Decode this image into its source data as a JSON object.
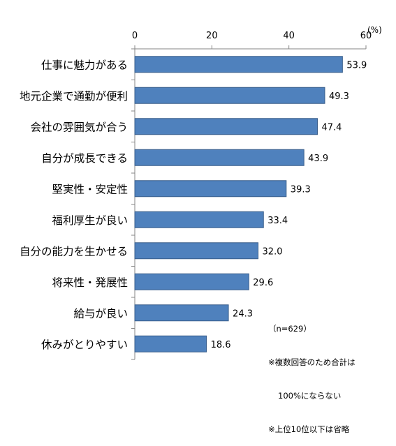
{
  "chart_data": {
    "type": "bar",
    "orientation": "horizontal",
    "categories": [
      "仕事に魅力がある",
      "地元企業で通勤が便利",
      "会社の雰囲気が合う",
      "自分が成長できる",
      "堅実性・安定性",
      "福利厚生が良い",
      "自分の能力を生かせる",
      "将来性・発展性",
      "給与が良い",
      "休みがとりやすい"
    ],
    "values": [
      53.9,
      49.3,
      47.4,
      43.9,
      39.3,
      33.4,
      32.0,
      29.6,
      24.3,
      18.6
    ],
    "value_labels": [
      "53.9",
      "49.3",
      "47.4",
      "43.9",
      "39.3",
      "33.4",
      "32.0",
      "29.6",
      "24.3",
      "18.6"
    ],
    "xlim": [
      0,
      60
    ],
    "xticks": [
      0,
      20,
      40,
      60
    ],
    "xtick_labels": [
      "0",
      "20",
      "40",
      "60"
    ],
    "unit": "(%)",
    "axis_position": "top",
    "grid": false,
    "bar_color": "#4f81bd",
    "bar_edge_color": "#385d8a",
    "notes": {
      "sample": "（n=629）",
      "line1": "※複数回答のため合計は",
      "line2": "100%にならない",
      "line3": "※上位10位以下は省略"
    }
  }
}
